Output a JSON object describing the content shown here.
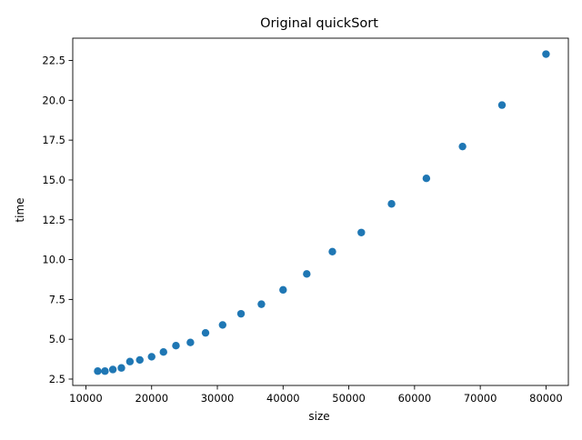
{
  "chart_data": {
    "type": "scatter",
    "title": "Original quickSort",
    "xlabel": "size",
    "ylabel": "time",
    "xlim": [
      8000,
      83400
    ],
    "ylim": [
      2.1,
      23.9
    ],
    "x_ticks": [
      10000,
      20000,
      30000,
      40000,
      50000,
      60000,
      70000,
      80000
    ],
    "x_tick_labels": [
      "10000",
      "20000",
      "30000",
      "40000",
      "50000",
      "60000",
      "70000",
      "80000"
    ],
    "y_ticks": [
      2.5,
      5.0,
      7.5,
      10.0,
      12.5,
      15.0,
      17.5,
      20.0,
      22.5
    ],
    "y_tick_labels": [
      "2.5",
      "5.0",
      "7.5",
      "10.0",
      "12.5",
      "15.0",
      "17.5",
      "20.0",
      "22.5"
    ],
    "grid": false,
    "marker_color": "#1f77b4",
    "series": [
      {
        "x": [
          11800,
          12900,
          14100,
          15400,
          16700,
          18200,
          20000,
          21800,
          23700,
          25900,
          28200,
          30800,
          33600,
          36700,
          40000,
          43600,
          47500,
          51900,
          56500,
          61800,
          67300,
          73300,
          80000
        ],
        "y": [
          3.0,
          3.0,
          3.1,
          3.2,
          3.6,
          3.7,
          3.9,
          4.2,
          4.6,
          4.8,
          5.4,
          5.9,
          6.6,
          7.2,
          8.1,
          9.1,
          10.5,
          11.7,
          13.5,
          15.1,
          17.1,
          19.7,
          22.9
        ]
      }
    ]
  }
}
